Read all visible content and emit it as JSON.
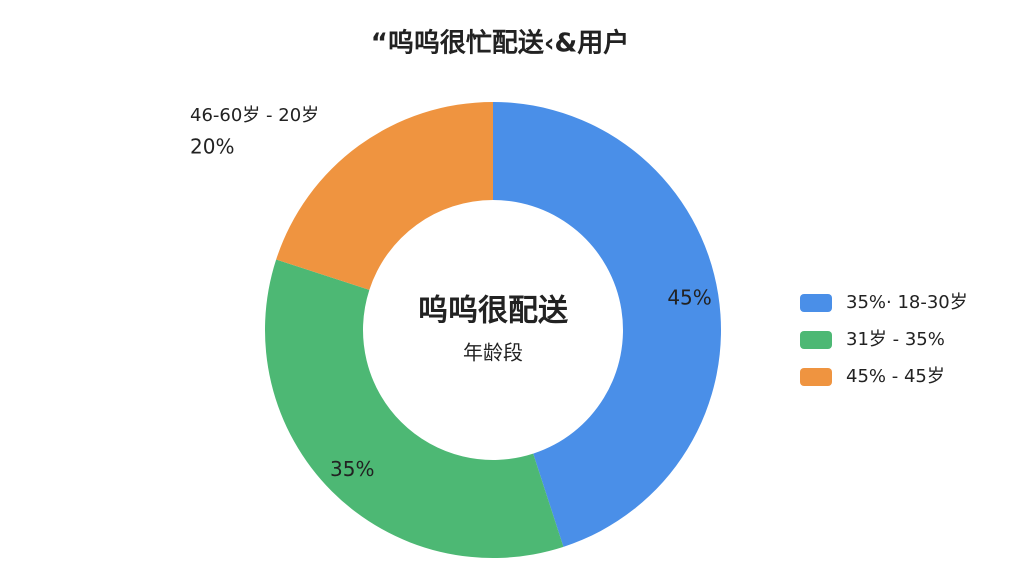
{
  "chart_data": {
    "type": "donut",
    "title": "“呜呜很忙配送‹&用户",
    "center_title": "呜呜很配送",
    "center_subtitle": "年龄段",
    "annotation": "46-60岁 - 20岁",
    "categories": [
      "35%· 18-30岁",
      "31岁 - 35%",
      "45% - 45岁"
    ],
    "values": [
      45,
      35,
      20
    ],
    "value_labels": [
      "45%",
      "35%",
      "20%"
    ],
    "colors": [
      "#4a8fe8",
      "#4db874",
      "#ef9440"
    ]
  }
}
